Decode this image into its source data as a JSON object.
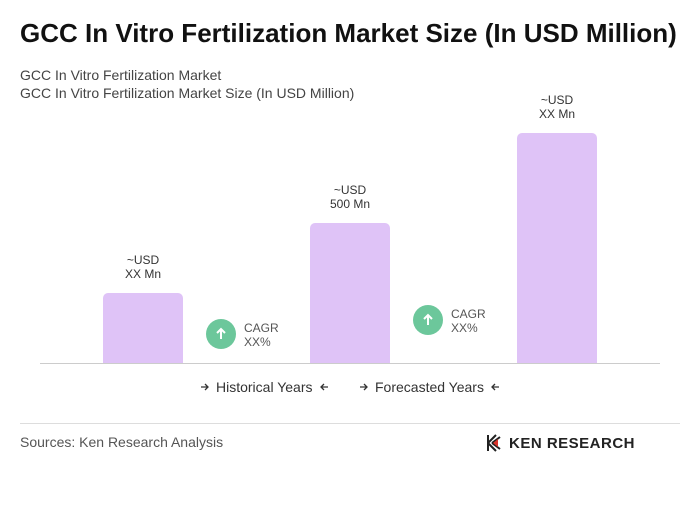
{
  "chart_data": {
    "type": "bar",
    "title": "GCC In Vitro Fertilization Market Size (In USD Million)",
    "subtitle": [
      "GCC In Vitro Fertilization Market",
      "GCC In Vitro Fertilization Market Size (In USD Million)"
    ],
    "values": [
      250,
      500,
      821
    ],
    "value_labels": [
      "~USD\nXX Mn",
      "~USD\n500 Mn",
      "~USD\nXX Mn"
    ],
    "color": "#dfc3f7",
    "annotations": [
      "CAGR\nXX%",
      "CAGR\nXX%"
    ],
    "legend": [
      "Historical Years",
      "Forecasted Years"
    ]
  },
  "source": "Sources: Ken Research Analysis",
  "logo": "KEN RESEARCH"
}
